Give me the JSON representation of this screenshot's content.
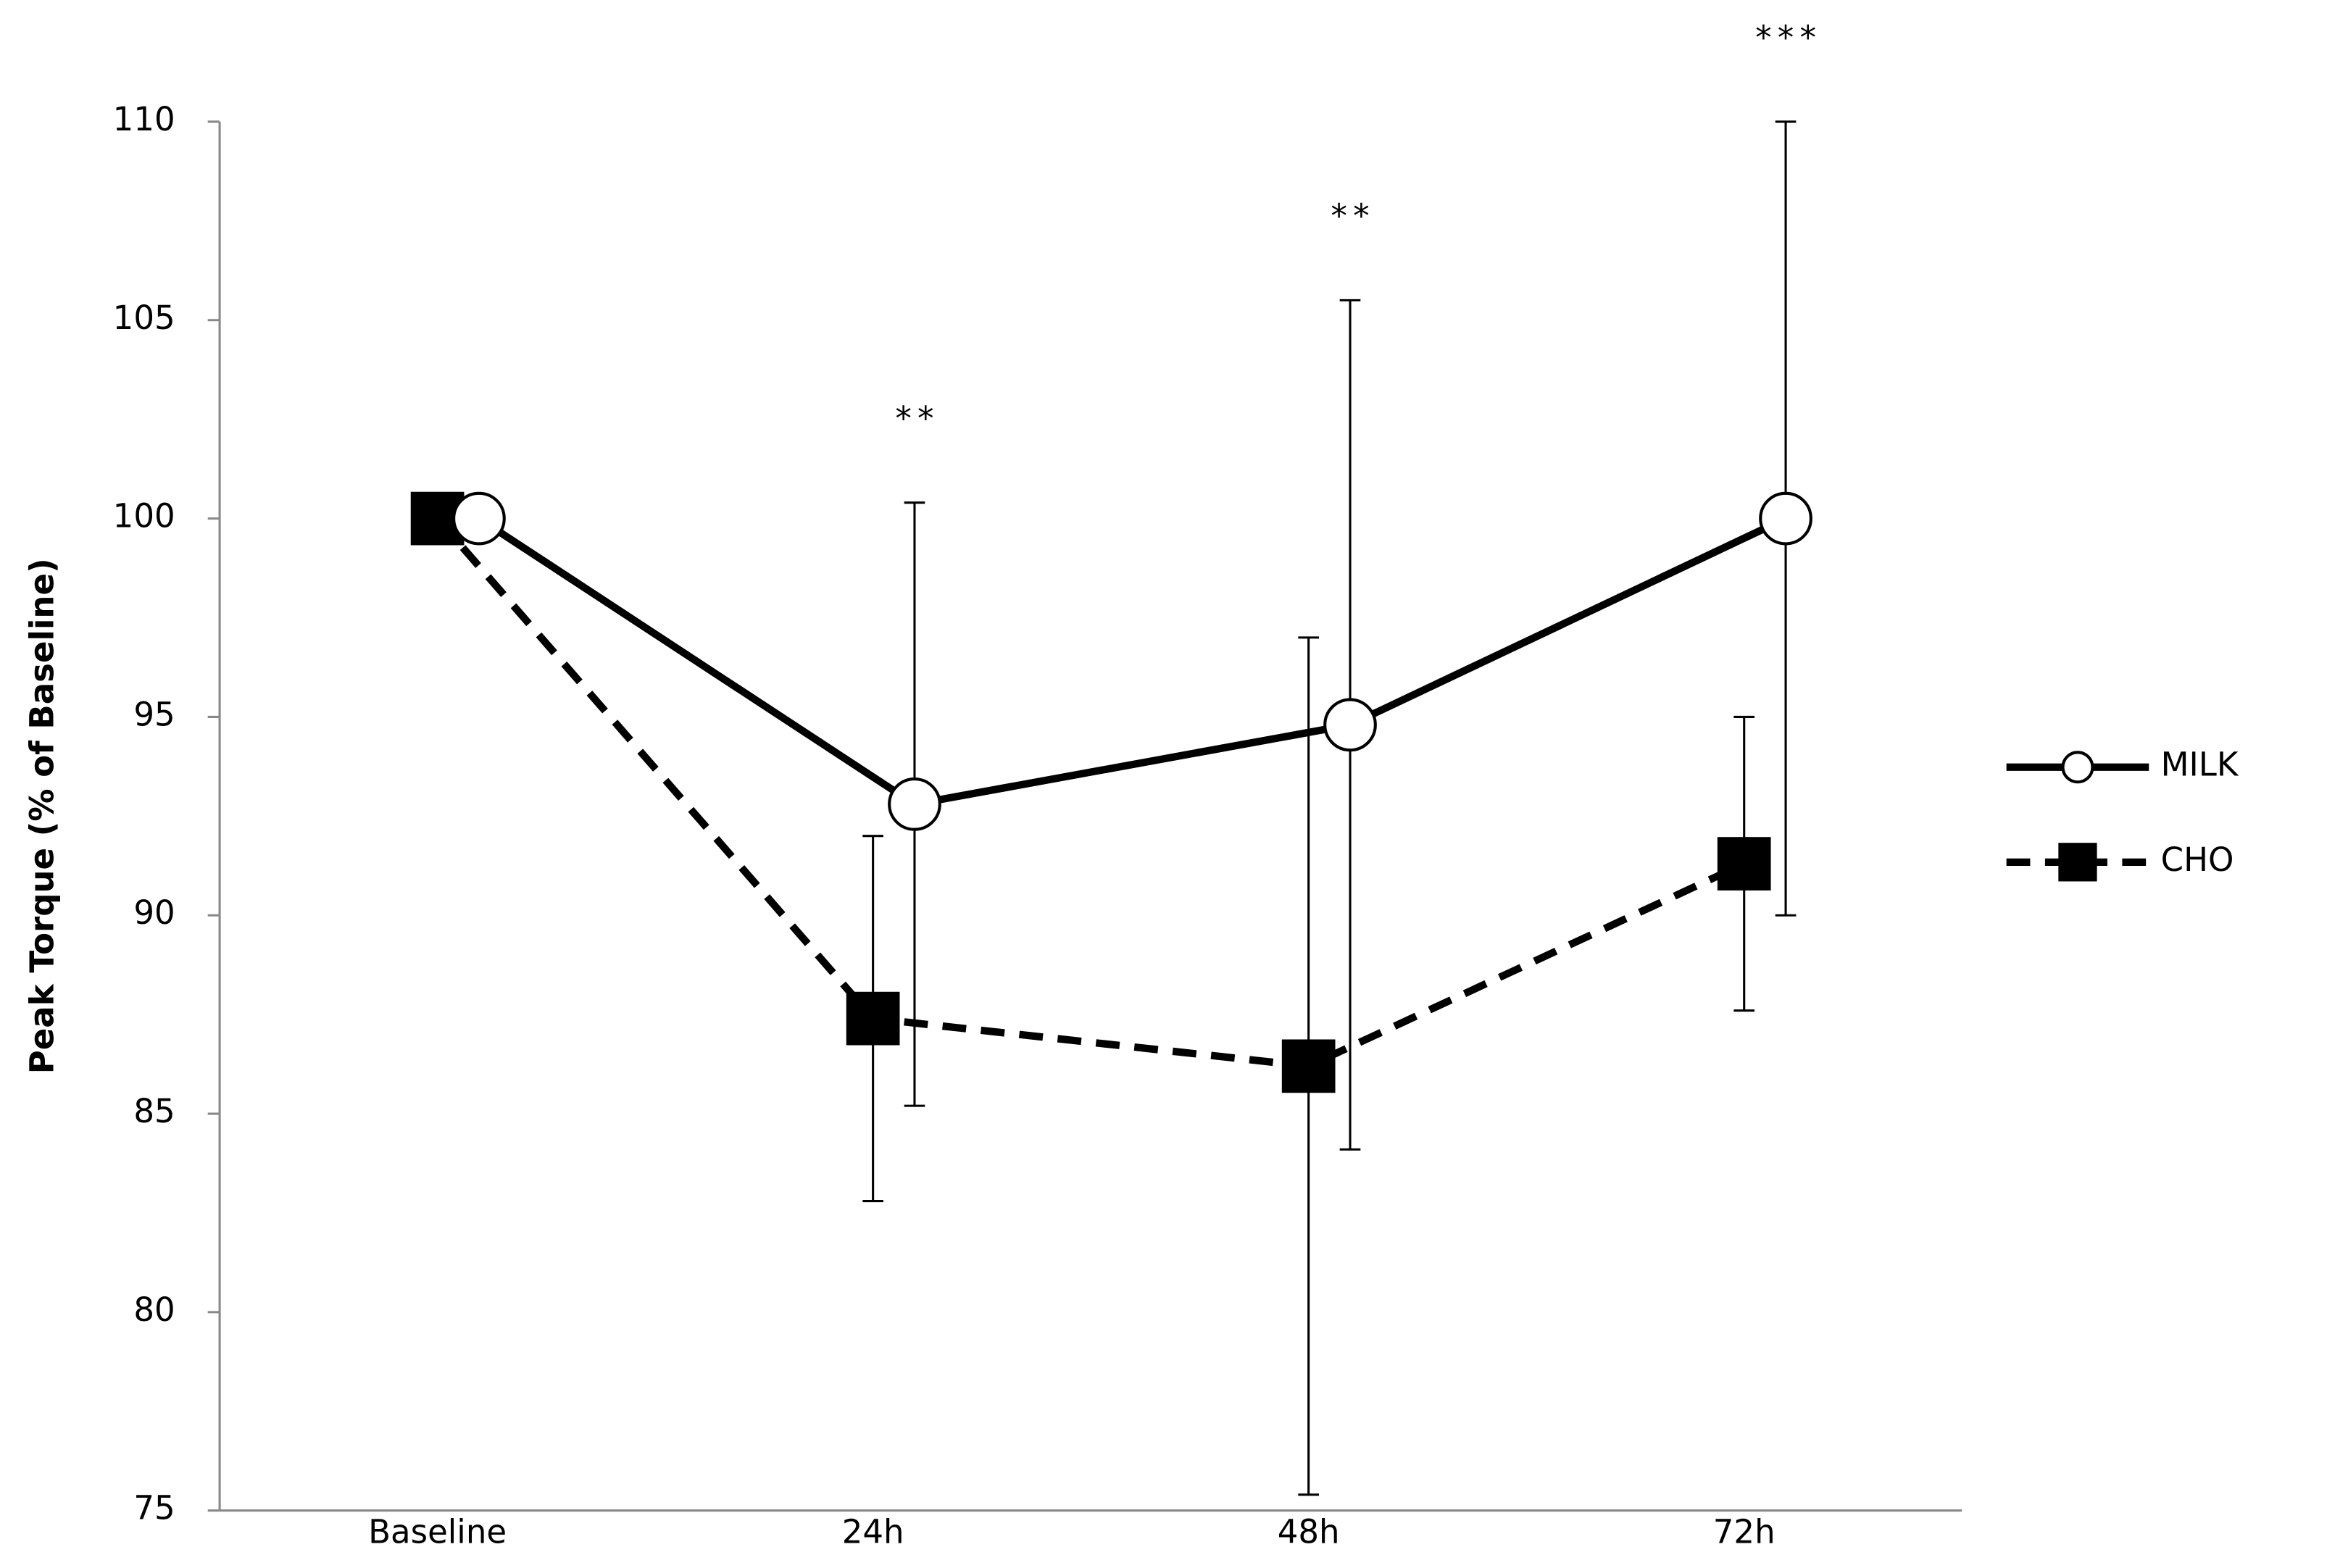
{
  "chart_data": {
    "type": "line",
    "y_label": "Peak Torque (% of Baseline)",
    "categories": [
      "Baseline",
      "24h",
      "48h",
      "72h"
    ],
    "series": [
      {
        "name": "MILK",
        "color": "#000000",
        "line_style": "solid",
        "marker": "circle",
        "values": [
          100,
          92.8,
          94.8,
          100
        ],
        "errors": [
          null,
          7.6,
          10.7,
          10
        ]
      },
      {
        "name": "CHO",
        "color": "#000000",
        "line_style": "dashed",
        "marker": "square",
        "values": [
          100,
          87.4,
          86.2,
          91.3
        ],
        "errors": [
          null,
          4.6,
          10.8,
          3.7
        ]
      }
    ],
    "annotations": [
      {
        "text": "**",
        "category": "24h"
      },
      {
        "text": "**",
        "category": "48h"
      },
      {
        "text": "***",
        "category": "72h"
      }
    ],
    "ylim": [
      75,
      110
    ],
    "yticks": [
      75,
      80,
      85,
      90,
      95,
      100,
      105,
      110
    ],
    "grid": false,
    "legend": "right"
  }
}
